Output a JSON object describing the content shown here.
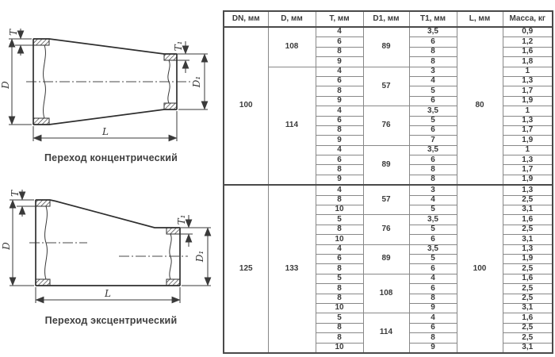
{
  "colors": {
    "table_border": "#888888",
    "table_border_strong": "#4a4a4a",
    "text": "#3b3b3b",
    "drawing_line": "#2f2f2f"
  },
  "diagrams": [
    {
      "caption": "Переход концентрический",
      "labels": {
        "t": "T",
        "d": "D",
        "t1": "T₁",
        "d1": "D₁",
        "l": "L"
      }
    },
    {
      "caption": "Переход эксцентрический",
      "labels": {
        "t": "T",
        "d": "D",
        "t1": "T₁",
        "d1": "D₁",
        "l": "L"
      }
    }
  ],
  "table": {
    "headers": [
      "DN, мм",
      "D, мм",
      "T, мм",
      "D1, мм",
      "T1, мм",
      "L, мм",
      "Масса, кг"
    ],
    "groups": [
      {
        "dn": "100",
        "l": "80",
        "d_groups": [
          {
            "d": "108",
            "d1_groups": [
              {
                "d1": "89",
                "rows": [
                  [
                    "4",
                    "3,5",
                    "0,9"
                  ],
                  [
                    "6",
                    "6",
                    "1,2"
                  ],
                  [
                    "8",
                    "8",
                    "1,6"
                  ],
                  [
                    "9",
                    "8",
                    "1,8"
                  ]
                ]
              }
            ]
          },
          {
            "d": "114",
            "d1_groups": [
              {
                "d1": "57",
                "rows": [
                  [
                    "4",
                    "3",
                    "1"
                  ],
                  [
                    "6",
                    "4",
                    "1,3"
                  ],
                  [
                    "8",
                    "5",
                    "1,7"
                  ],
                  [
                    "9",
                    "6",
                    "1,9"
                  ]
                ]
              },
              {
                "d1": "76",
                "rows": [
                  [
                    "4",
                    "3,5",
                    "1"
                  ],
                  [
                    "6",
                    "5",
                    "1,3"
                  ],
                  [
                    "8",
                    "6",
                    "1,7"
                  ],
                  [
                    "9",
                    "7",
                    "1,9"
                  ]
                ]
              },
              {
                "d1": "89",
                "rows": [
                  [
                    "4",
                    "3,5",
                    "1"
                  ],
                  [
                    "6",
                    "6",
                    "1,3"
                  ],
                  [
                    "8",
                    "8",
                    "1,7"
                  ],
                  [
                    "9",
                    "8",
                    "1,9"
                  ]
                ]
              }
            ]
          }
        ]
      },
      {
        "dn": "125",
        "l": "100",
        "d_groups": [
          {
            "d": "133",
            "d1_groups": [
              {
                "d1": "57",
                "rows": [
                  [
                    "4",
                    "3",
                    "1,3"
                  ],
                  [
                    "8",
                    "4",
                    "2,5"
                  ],
                  [
                    "10",
                    "5",
                    "3,1"
                  ]
                ]
              },
              {
                "d1": "76",
                "rows": [
                  [
                    "5",
                    "3,5",
                    "1,6"
                  ],
                  [
                    "8",
                    "5",
                    "2,5"
                  ],
                  [
                    "10",
                    "6",
                    "3,1"
                  ]
                ]
              },
              {
                "d1": "89",
                "rows": [
                  [
                    "4",
                    "3,5",
                    "1,3"
                  ],
                  [
                    "6",
                    "5",
                    "1,9"
                  ],
                  [
                    "8",
                    "6",
                    "2,5"
                  ]
                ]
              },
              {
                "d1": "108",
                "rows": [
                  [
                    "5",
                    "4",
                    "1,6"
                  ],
                  [
                    "8",
                    "6",
                    "2,5"
                  ],
                  [
                    "8",
                    "8",
                    "2,5"
                  ],
                  [
                    "10",
                    "9",
                    "3,1"
                  ]
                ]
              },
              {
                "d1": "114",
                "rows": [
                  [
                    "5",
                    "4",
                    "1,6"
                  ],
                  [
                    "8",
                    "6",
                    "2,5"
                  ],
                  [
                    "8",
                    "8",
                    "2,5"
                  ],
                  [
                    "10",
                    "9",
                    "3,1"
                  ]
                ]
              }
            ]
          }
        ]
      }
    ]
  }
}
